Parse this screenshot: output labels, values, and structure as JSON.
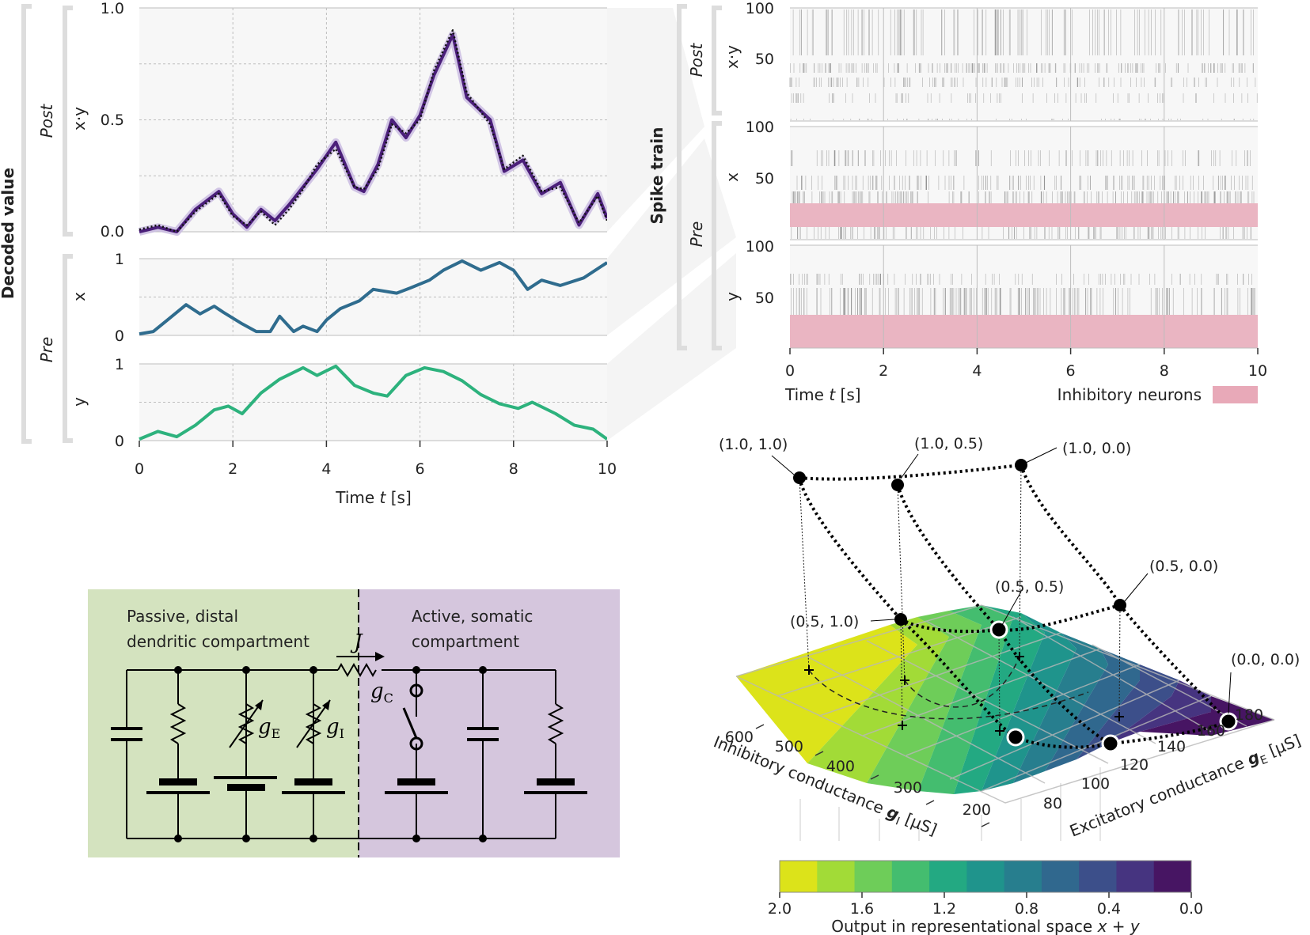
{
  "decoded": {
    "side_label": "Decoded value",
    "group_post": "Post",
    "group_pre": "Pre",
    "xlabel_prefix": "Time ",
    "xlabel_var": "t",
    "xlabel_suffix": " [s]"
  },
  "raster": {
    "side_label": "Spike train",
    "group_post": "Post",
    "group_pre": "Pre",
    "row_labels": [
      "x·y",
      "x",
      "y"
    ],
    "yticks": [
      "100",
      "50"
    ],
    "xticks": [
      "0",
      "2",
      "4",
      "6",
      "8",
      "10"
    ],
    "xlabel_prefix": "Time ",
    "xlabel_var": "t",
    "xlabel_suffix": " [s]",
    "legend_label": "Inhibitory neurons",
    "inhibitory_color": "#e8a9b8"
  },
  "chart_data": [
    {
      "type": "line",
      "panel": "x·y",
      "ylabel": "x·y",
      "ylim": [
        0,
        1
      ],
      "yticks": [
        "0.0",
        "0.5",
        "1.0"
      ],
      "xlim": [
        0,
        10
      ],
      "xticks": [
        "0",
        "2",
        "4",
        "6",
        "8",
        "10"
      ],
      "grid": true,
      "x": [
        0,
        0.4,
        0.8,
        1.2,
        1.7,
        2.0,
        2.3,
        2.6,
        2.9,
        3.2,
        3.5,
        3.8,
        4.2,
        4.6,
        4.8,
        5.1,
        5.4,
        5.7,
        6.0,
        6.3,
        6.7,
        7.0,
        7.5,
        7.8,
        8.2,
        8.6,
        9.0,
        9.4,
        9.8,
        10
      ],
      "series": [
        {
          "values": [
            0.0,
            0.02,
            0.0,
            0.1,
            0.18,
            0.08,
            0.02,
            0.1,
            0.05,
            0.12,
            0.2,
            0.28,
            0.4,
            0.2,
            0.18,
            0.3,
            0.5,
            0.42,
            0.52,
            0.7,
            0.88,
            0.6,
            0.5,
            0.27,
            0.32,
            0.17,
            0.22,
            0.03,
            0.17,
            0.06
          ],
          "color": "#4b1f7a"
        },
        {
          "values": [
            0.01,
            0.03,
            0.0,
            0.09,
            0.17,
            0.07,
            0.03,
            0.09,
            0.03,
            0.1,
            0.19,
            0.3,
            0.37,
            0.2,
            0.19,
            0.28,
            0.48,
            0.44,
            0.5,
            0.72,
            0.9,
            0.62,
            0.48,
            0.28,
            0.34,
            0.18,
            0.2,
            0.04,
            0.16,
            0.05
          ],
          "color": "#111111",
          "style": "dotted"
        }
      ]
    },
    {
      "type": "line",
      "panel": "x",
      "ylabel": "x",
      "ylim": [
        0,
        1
      ],
      "yticks": [
        "0",
        "1"
      ],
      "xlim": [
        0,
        10
      ],
      "grid": true,
      "x": [
        0,
        0.3,
        0.6,
        1.0,
        1.3,
        1.6,
        1.8,
        2.2,
        2.5,
        2.8,
        3.0,
        3.3,
        3.5,
        3.8,
        4.0,
        4.3,
        4.7,
        5.0,
        5.5,
        5.8,
        6.2,
        6.5,
        6.9,
        7.3,
        7.7,
        8.0,
        8.3,
        8.6,
        9.0,
        9.5,
        10
      ],
      "series": [
        {
          "values": [
            0.02,
            0.05,
            0.2,
            0.4,
            0.28,
            0.38,
            0.3,
            0.15,
            0.05,
            0.05,
            0.25,
            0.05,
            0.12,
            0.05,
            0.2,
            0.35,
            0.45,
            0.6,
            0.55,
            0.62,
            0.72,
            0.85,
            0.97,
            0.85,
            0.95,
            0.85,
            0.6,
            0.72,
            0.65,
            0.75,
            0.95
          ],
          "color": "#2f6c8e"
        }
      ]
    },
    {
      "type": "line",
      "panel": "y",
      "ylabel": "y",
      "ylim": [
        0,
        1
      ],
      "yticks": [
        "0",
        "1"
      ],
      "xlim": [
        0,
        10
      ],
      "xticks": [
        "0",
        "2",
        "4",
        "6",
        "8",
        "10"
      ],
      "grid": true,
      "x": [
        0,
        0.4,
        0.8,
        1.2,
        1.6,
        1.9,
        2.2,
        2.6,
        3.0,
        3.5,
        3.8,
        4.2,
        4.6,
        5.0,
        5.3,
        5.7,
        6.1,
        6.5,
        6.9,
        7.3,
        7.7,
        8.1,
        8.4,
        8.9,
        9.3,
        9.7,
        10
      ],
      "series": [
        {
          "values": [
            0.02,
            0.12,
            0.05,
            0.2,
            0.4,
            0.45,
            0.35,
            0.62,
            0.8,
            0.95,
            0.85,
            0.97,
            0.72,
            0.62,
            0.58,
            0.85,
            0.95,
            0.9,
            0.78,
            0.6,
            0.48,
            0.42,
            0.5,
            0.35,
            0.2,
            0.15,
            0.02
          ],
          "color": "#2db27d"
        }
      ]
    }
  ],
  "circuit": {
    "left_text": [
      "Passive, distal",
      "dendritic compartment"
    ],
    "right_text": [
      "Active, somatic",
      "compartment"
    ],
    "current_label": "J",
    "gc_label": "g",
    "gc_sub": "C",
    "ge_label": "g",
    "ge_sub": "E",
    "gi_label": "g",
    "gi_sub": "I",
    "left_color": "#d4e3bf",
    "right_color": "#d5c6dd"
  },
  "surface": {
    "points": [
      "(1.0, 1.0)",
      "(1.0, 0.5)",
      "(1.0, 0.0)",
      "(0.5, 0.5)",
      "(0.5, 0.0)",
      "(0.5, 1.0)",
      "(0.0, 0.0)"
    ],
    "gi_ticks": [
      "600",
      "500",
      "400",
      "300",
      "200"
    ],
    "ge_ticks": [
      "80",
      "100",
      "120",
      "140",
      "160",
      "180"
    ],
    "gi_axis_label": "Inhibitory conductance ",
    "gi_axis_var": "g",
    "gi_axis_sub": "I",
    "gi_axis_unit": " [µS]",
    "ge_axis_label": "Excitatory conductance ",
    "ge_axis_var": "g",
    "ge_axis_sub": "E",
    "ge_axis_unit": " [µS]",
    "colorbar_ticks": [
      "2.0",
      "1.6",
      "1.2",
      "0.8",
      "0.4",
      "0.0"
    ],
    "colorbar_label_prefix": "Output in representational space ",
    "colorbar_label_math": "x + y",
    "colorbar_colors": [
      "#dce31a",
      "#a2db37",
      "#6ecd59",
      "#44bd6f",
      "#23a982",
      "#1f948c",
      "#277e8e",
      "#30688e",
      "#3c4f8a",
      "#463480",
      "#471563"
    ]
  }
}
